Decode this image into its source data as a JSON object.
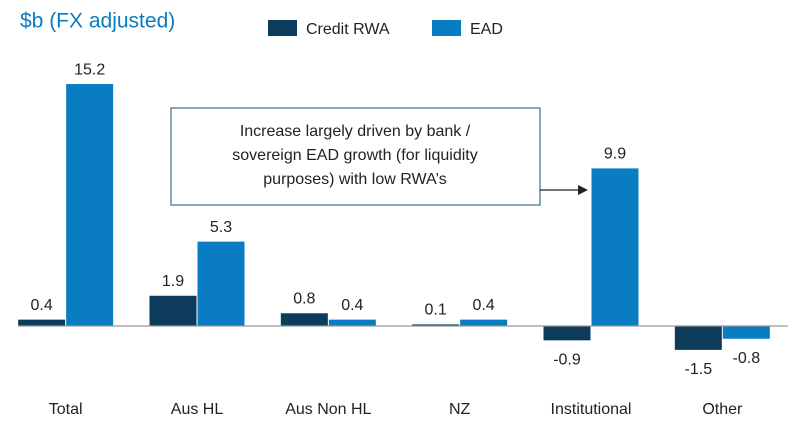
{
  "chart_data": {
    "type": "bar",
    "title": "$b (FX adjusted)",
    "categories": [
      "Total",
      "Aus HL",
      "Aus Non HL",
      "NZ",
      "Institutional",
      "Other"
    ],
    "series": [
      {
        "name": "Credit RWA",
        "color": "#0d3b5c",
        "values": [
          0.4,
          1.9,
          0.8,
          0.1,
          -0.9,
          -1.5
        ]
      },
      {
        "name": "EAD",
        "color": "#0a7dc2",
        "values": [
          15.2,
          5.3,
          0.4,
          0.4,
          9.9,
          -0.8
        ]
      }
    ],
    "ylim": [
      -2.5,
      16
    ],
    "annotation": [
      "Increase largely driven by bank /",
      "sovereign EAD growth (for liquidity",
      "purposes)  with low RWA’s"
    ]
  }
}
